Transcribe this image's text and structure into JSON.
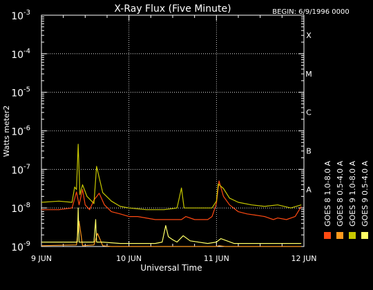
{
  "chart_data": {
    "type": "line",
    "title": "X-Ray Flux (Five Minute)",
    "begin_label": "BEGIN: 6/9/1996 0000",
    "xlabel": "Universal Time",
    "ylabel": "Watts meter2",
    "y_scale": "log",
    "ylim": [
      1e-09,
      0.001
    ],
    "xlim": [
      0,
      3
    ],
    "x_ticks": [
      {
        "x": 0,
        "label": "9 JUN"
      },
      {
        "x": 1,
        "label": "10 JUN"
      },
      {
        "x": 2,
        "label": "11 JUN"
      },
      {
        "x": 3,
        "label": "12 JUN"
      }
    ],
    "y_ticks": [
      {
        "exp": -9,
        "base": "10",
        "sup": "-9"
      },
      {
        "exp": -8,
        "base": "10",
        "sup": "-8"
      },
      {
        "exp": -7,
        "base": "10",
        "sup": "-7"
      },
      {
        "exp": -6,
        "base": "10",
        "sup": "-6"
      },
      {
        "exp": -5,
        "base": "10",
        "sup": "-5"
      },
      {
        "exp": -4,
        "base": "10",
        "sup": "-4"
      },
      {
        "exp": -3,
        "base": "10",
        "sup": "-3"
      }
    ],
    "flare_classes": [
      {
        "label": "A",
        "exp": -8
      },
      {
        "label": "B",
        "exp": -7
      },
      {
        "label": "C",
        "exp": -6
      },
      {
        "label": "M",
        "exp": -5
      },
      {
        "label": "X",
        "exp": -4
      }
    ],
    "grid": "dotted",
    "legend_position": "right",
    "legend": [
      {
        "name": "GOES 8 1.0-8.0 A",
        "color": "#ff4a12"
      },
      {
        "name": "GOES 8 0.5-4.0 A",
        "color": "#ff9a1e"
      },
      {
        "name": "GOES 9 1.0-8.0 A",
        "color": "#c8c800"
      },
      {
        "name": "GOES 9 0.5-4.0 A",
        "color": "#ffff66"
      }
    ],
    "series": [
      {
        "name": "GOES 8 1.0-8.0 A",
        "color": "#ff4a12",
        "x": [
          0,
          0.2,
          0.35,
          0.4,
          0.43,
          0.47,
          0.5,
          0.55,
          0.6,
          0.66,
          0.72,
          0.8,
          0.9,
          1.0,
          1.1,
          1.3,
          1.5,
          1.6,
          1.65,
          1.75,
          1.9,
          1.95,
          2.0,
          2.03,
          2.08,
          2.15,
          2.25,
          2.35,
          2.45,
          2.55,
          2.65,
          2.7,
          2.8,
          2.9,
          2.97
        ],
        "y": [
          9e-09,
          9e-09,
          1e-08,
          2.6e-08,
          1.2e-08,
          3e-08,
          1.2e-08,
          9e-09,
          1.6e-08,
          2.4e-08,
          1.2e-08,
          8e-09,
          7e-09,
          6e-09,
          6e-09,
          5e-09,
          5e-09,
          5e-09,
          6e-09,
          5e-09,
          5e-09,
          6e-09,
          1.3e-08,
          5e-08,
          2e-08,
          1.2e-08,
          8e-09,
          7e-09,
          6.5e-09,
          6e-09,
          5e-09,
          5.5e-09,
          5e-09,
          6e-09,
          1.1e-08
        ]
      },
      {
        "name": "GOES 8 0.5-4.0 A",
        "color": "#ff9a1e",
        "x": [
          0,
          0.4,
          0.43,
          0.47,
          0.6,
          0.64,
          0.7,
          0.8,
          1.5,
          1.6,
          2.0,
          2.03,
          2.1,
          2.3,
          2.97
        ],
        "y": [
          1.05e-09,
          1.1e-09,
          4.5e-09,
          1.05e-09,
          1.1e-09,
          2.2e-09,
          1.05e-09,
          1e-09,
          1e-09,
          1e-09,
          1e-09,
          1.05e-09,
          1e-09,
          1e-09,
          1e-09
        ]
      },
      {
        "name": "GOES 9 1.0-8.0 A",
        "color": "#c8c800",
        "x": [
          0,
          0.2,
          0.35,
          0.38,
          0.4,
          0.42,
          0.44,
          0.47,
          0.52,
          0.6,
          0.63,
          0.7,
          0.8,
          0.9,
          1.0,
          1.2,
          1.4,
          1.55,
          1.6,
          1.63,
          1.8,
          1.95,
          2.0,
          2.02,
          2.08,
          2.15,
          2.25,
          2.4,
          2.55,
          2.7,
          2.85,
          2.97
        ],
        "y": [
          1.4e-08,
          1.5e-08,
          1.4e-08,
          3.5e-08,
          3e-08,
          4.5e-07,
          2.2e-08,
          4e-08,
          2e-08,
          1.3e-08,
          1.2e-07,
          2.5e-08,
          1.5e-08,
          1.1e-08,
          1e-08,
          9e-09,
          9e-09,
          1e-08,
          3.3e-08,
          1e-08,
          1e-08,
          1e-08,
          1.5e-08,
          4.2e-08,
          3.2e-08,
          1.8e-08,
          1.4e-08,
          1.2e-08,
          1.1e-08,
          1.2e-08,
          1e-08,
          1.2e-08
        ]
      },
      {
        "name": "GOES 9 0.5-4.0 A",
        "color": "#ffff66",
        "x": [
          0,
          0.2,
          0.41,
          0.42,
          0.43,
          0.5,
          0.6,
          0.62,
          0.63,
          0.7,
          0.9,
          1.1,
          1.3,
          1.38,
          1.42,
          1.45,
          1.5,
          1.55,
          1.62,
          1.7,
          1.9,
          2.0,
          2.05,
          2.2,
          2.5,
          2.8,
          2.97
        ],
        "y": [
          1.3e-09,
          1.3e-09,
          1.3e-09,
          1e-08,
          1.3e-09,
          1.3e-09,
          1.3e-09,
          5e-09,
          1.3e-09,
          1.3e-09,
          1.2e-09,
          1.2e-09,
          1.2e-09,
          1.3e-09,
          3.5e-09,
          1.8e-09,
          1.5e-09,
          1.3e-09,
          1.9e-09,
          1.4e-09,
          1.2e-09,
          1.3e-09,
          1.6e-09,
          1.2e-09,
          1.2e-09,
          1.2e-09,
          1.2e-09
        ]
      }
    ]
  }
}
